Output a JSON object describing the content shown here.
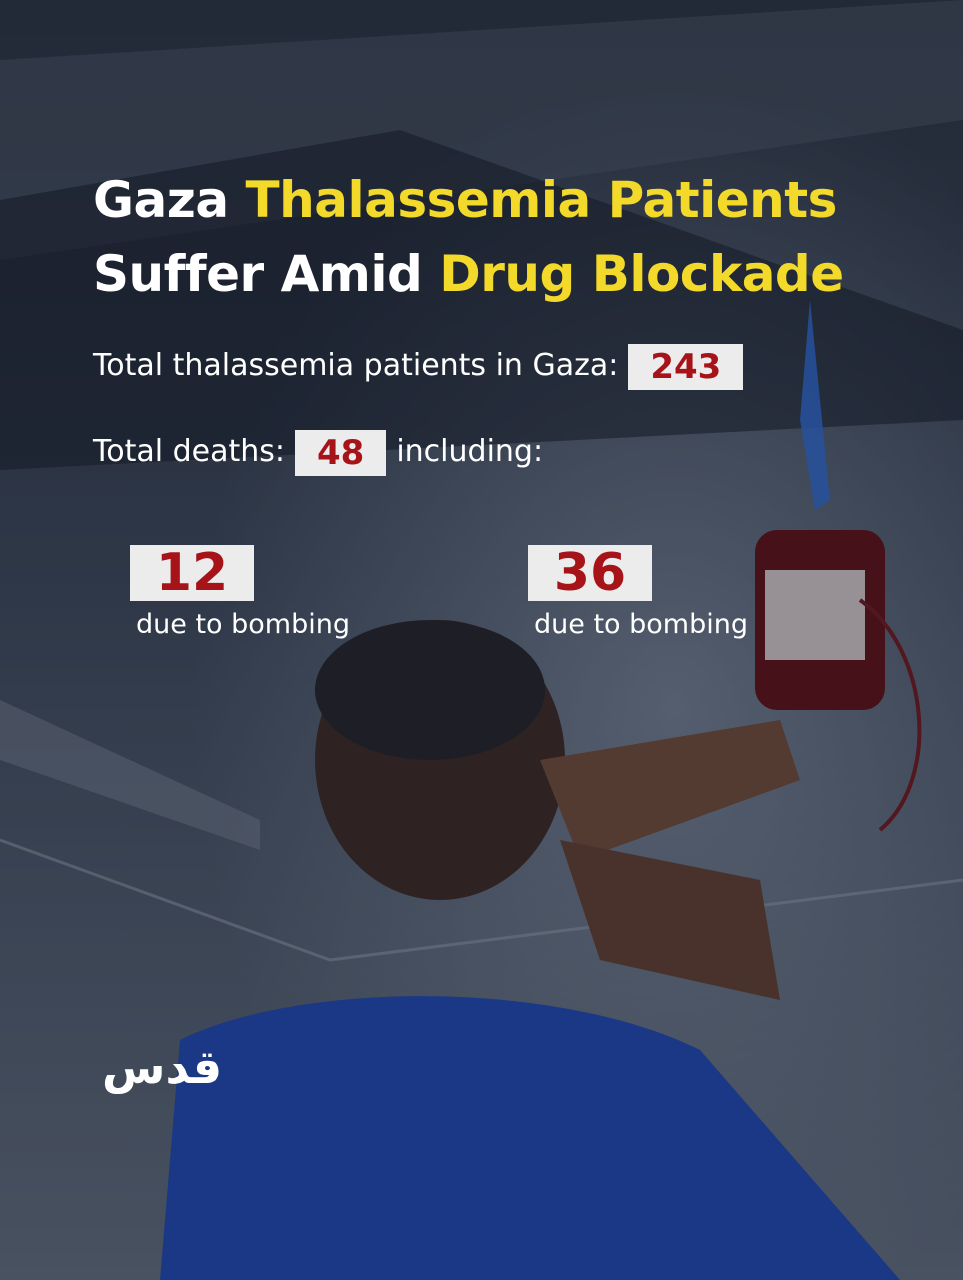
{
  "title": {
    "part1": "Gaza",
    "part2": "Thalassemia Patients",
    "part3": "Suffer Amid",
    "part4": "Drug Blockade"
  },
  "patients": {
    "label": "Total thalassemia patients in Gaza:",
    "value": 243
  },
  "deaths": {
    "label": "Total deaths:",
    "value": 48,
    "suffix": "including:"
  },
  "breakdown": [
    {
      "value": 12,
      "label": "due to bombing"
    },
    {
      "value": 36,
      "label": "due to bombing"
    }
  ],
  "logo": "قدس"
}
